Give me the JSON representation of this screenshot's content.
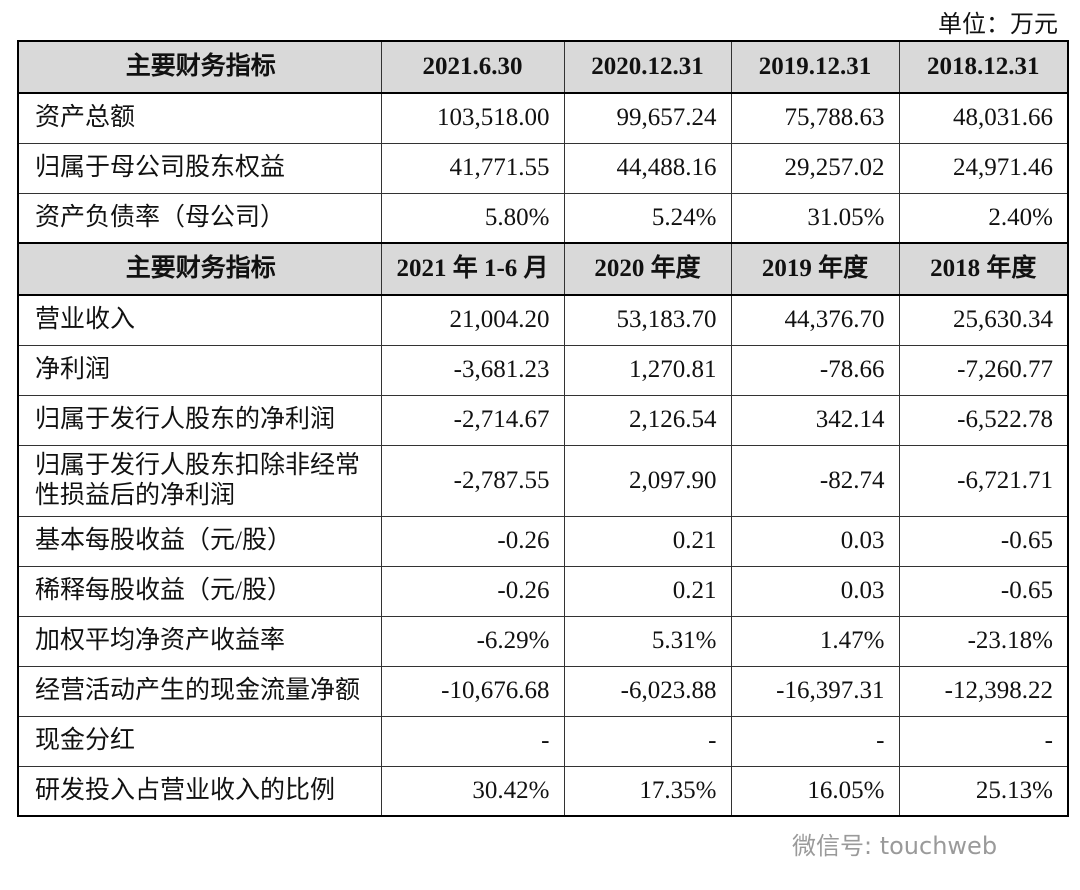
{
  "unit": "单位：万元",
  "sections": [
    {
      "header": [
        "主要财务指标",
        "2021.6.30",
        "2020.12.31",
        "2019.12.31",
        "2018.12.31"
      ],
      "rows": [
        [
          "资产总额",
          "103,518.00",
          "99,657.24",
          "75,788.63",
          "48,031.66"
        ],
        [
          "归属于母公司股东权益",
          "41,771.55",
          "44,488.16",
          "29,257.02",
          "24,971.46"
        ],
        [
          "资产负债率（母公司）",
          "5.80%",
          "5.24%",
          "31.05%",
          "2.40%"
        ]
      ]
    },
    {
      "header": [
        "主要财务指标",
        "2021 年 1-6 月",
        "2020 年度",
        "2019 年度",
        "2018 年度"
      ],
      "rows": [
        [
          "营业收入",
          "21,004.20",
          "53,183.70",
          "44,376.70",
          "25,630.34"
        ],
        [
          "净利润",
          "-3,681.23",
          "1,270.81",
          "-78.66",
          "-7,260.77"
        ],
        [
          "归属于发行人股东的净利润",
          "-2,714.67",
          "2,126.54",
          "342.14",
          "-6,522.78"
        ],
        [
          "归属于发行人股东扣除非经常性损益后的净利润",
          "-2,787.55",
          "2,097.90",
          "-82.74",
          "-6,721.71"
        ],
        [
          "基本每股收益（元/股）",
          "-0.26",
          "0.21",
          "0.03",
          "-0.65"
        ],
        [
          "稀释每股收益（元/股）",
          "-0.26",
          "0.21",
          "0.03",
          "-0.65"
        ],
        [
          "加权平均净资产收益率",
          "-6.29%",
          "5.31%",
          "1.47%",
          "-23.18%"
        ],
        [
          "经营活动产生的现金流量净额",
          "-10,676.68",
          "-6,023.88",
          "-16,397.31",
          "-12,398.22"
        ],
        [
          "现金分红",
          "-",
          "-",
          "-",
          "-"
        ],
        [
          "研发投入占营业收入的比例",
          "30.42%",
          "17.35%",
          "16.05%",
          "25.13%"
        ]
      ]
    }
  ],
  "watermark": "微信号: touchweb"
}
